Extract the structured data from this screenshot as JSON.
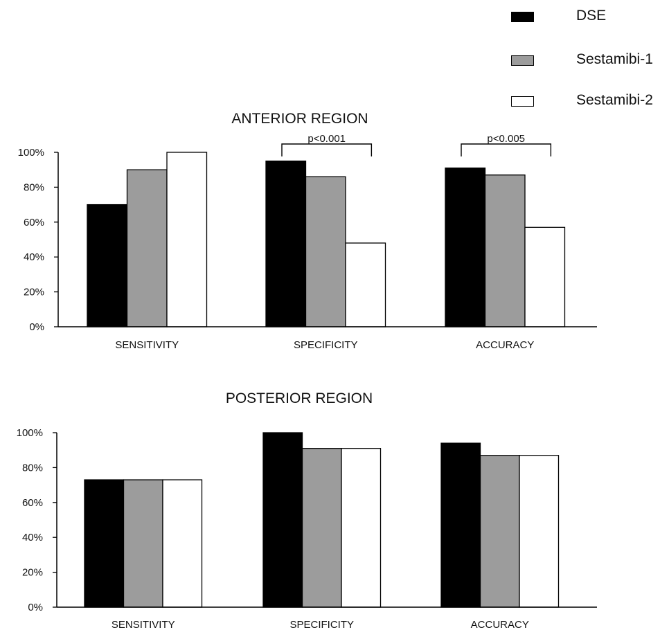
{
  "legend": {
    "items": [
      {
        "label": "DSE",
        "color": "#000000"
      },
      {
        "label": "Sestamibi-1",
        "color": "#9c9c9c"
      },
      {
        "label": "Sestamibi-2",
        "color": "#ffffff"
      }
    ]
  },
  "chart_data": [
    {
      "type": "bar",
      "title": "ANTERIOR REGION",
      "categories": [
        "SENSITIVITY",
        "SPECIFICITY",
        "ACCURACY"
      ],
      "series": [
        {
          "name": "DSE",
          "values": [
            70,
            95,
            91
          ]
        },
        {
          "name": "Sestamibi-1",
          "values": [
            90,
            86,
            87
          ]
        },
        {
          "name": "Sestamibi-2",
          "values": [
            100,
            48,
            57
          ]
        }
      ],
      "yticks": [
        "0%",
        "20%",
        "40%",
        "60%",
        "80%",
        "100%"
      ],
      "ylim": [
        0,
        100
      ],
      "grid": false,
      "annotations": [
        {
          "text": "p<0.001",
          "category": "SPECIFICITY",
          "from_series": "DSE",
          "to_series": "Sestamibi-2"
        },
        {
          "text": "p<0.005",
          "category": "ACCURACY",
          "from_series": "DSE",
          "to_series": "Sestamibi-2"
        }
      ]
    },
    {
      "type": "bar",
      "title": "POSTERIOR REGION",
      "categories": [
        "SENSITIVITY",
        "SPECIFICITY",
        "ACCURACY"
      ],
      "series": [
        {
          "name": "DSE",
          "values": [
            73,
            100,
            94
          ]
        },
        {
          "name": "Sestamibi-1",
          "values": [
            73,
            91,
            87
          ]
        },
        {
          "name": "Sestamibi-2",
          "values": [
            73,
            91,
            87
          ]
        }
      ],
      "yticks": [
        "0%",
        "20%",
        "40%",
        "60%",
        "80%",
        "100%"
      ],
      "ylim": [
        0,
        100
      ],
      "grid": false,
      "annotations": []
    }
  ]
}
